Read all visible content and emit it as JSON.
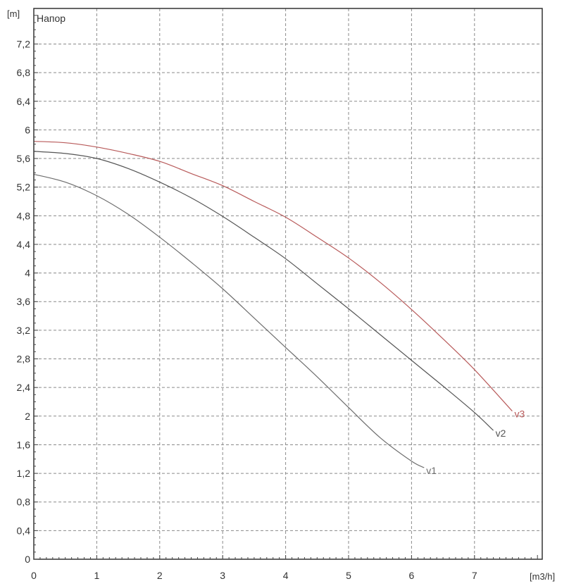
{
  "chart_data": {
    "type": "line",
    "title": "Напор",
    "xlabel": "[m3/h]",
    "ylabel": "[m]",
    "xlim": [
      0,
      8
    ],
    "ylim": [
      0,
      7.6
    ],
    "x_ticks": [
      0,
      1,
      2,
      3,
      4,
      5,
      6,
      7
    ],
    "x_tick_labels": [
      "0",
      "1",
      "2",
      "3",
      "4",
      "5",
      "6",
      "7"
    ],
    "y_ticks": [
      0,
      0.4,
      0.8,
      1.2,
      1.6,
      2,
      2.4,
      2.8,
      3.2,
      3.6,
      4,
      4.4,
      4.8,
      5.2,
      5.6,
      6,
      6.4,
      6.8,
      7.2
    ],
    "y_tick_labels": [
      "0",
      "0,4",
      "0,8",
      "1,2",
      "1,6",
      "2",
      "2,4",
      "2,8",
      "3,2",
      "3,6",
      "4",
      "4,4",
      "4,8",
      "5,2",
      "5,6",
      "6",
      "6,4",
      "6,8",
      "7,2"
    ],
    "grid": true,
    "series": [
      {
        "name": "v1",
        "color": "#6e6e6e",
        "x": [
          0,
          0.5,
          1,
          1.5,
          2,
          2.5,
          3,
          3.5,
          4,
          4.5,
          5,
          5.5,
          6,
          6.2
        ],
        "y": [
          5.38,
          5.27,
          5.08,
          4.82,
          4.5,
          4.15,
          3.78,
          3.37,
          2.96,
          2.55,
          2.12,
          1.7,
          1.37,
          1.28
        ]
      },
      {
        "name": "v2",
        "color": "#555555",
        "x": [
          0,
          0.5,
          1,
          1.5,
          2,
          2.5,
          3,
          3.5,
          4,
          4.5,
          5,
          5.5,
          6,
          6.5,
          7,
          7.3
        ],
        "y": [
          5.7,
          5.67,
          5.6,
          5.46,
          5.27,
          5.05,
          4.79,
          4.5,
          4.2,
          3.85,
          3.5,
          3.14,
          2.78,
          2.42,
          2.05,
          1.8
        ]
      },
      {
        "name": "v3",
        "color": "#b85a5a",
        "x": [
          0,
          0.5,
          1,
          1.5,
          2,
          2.5,
          3,
          3.5,
          4,
          4.5,
          5,
          5.5,
          6,
          6.5,
          7,
          7.6
        ],
        "y": [
          5.84,
          5.82,
          5.76,
          5.67,
          5.56,
          5.39,
          5.22,
          5.0,
          4.78,
          4.5,
          4.21,
          3.87,
          3.49,
          3.08,
          2.65,
          2.07
        ]
      }
    ]
  }
}
